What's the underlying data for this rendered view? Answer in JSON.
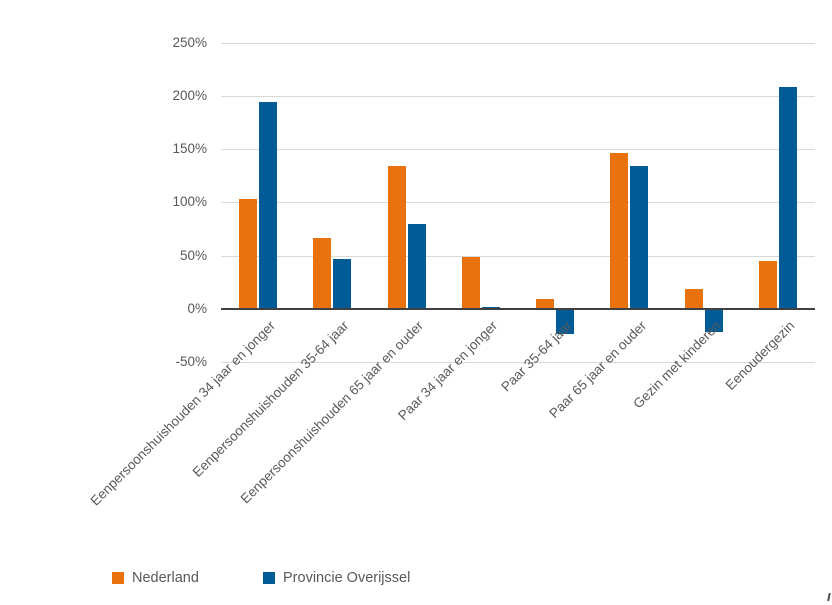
{
  "chart_data": {
    "type": "bar",
    "title": "",
    "xlabel": "",
    "ylabel": "",
    "categories": [
      "Eenpersoonshuishouden 34 jaar en jonger",
      "Eenpersoonshuishouden 35-64 jaar",
      "Eenpersoonshuishouden 65 jaar en ouder",
      "Paar 34 jaar en jonger",
      "Paar 35-64 jaar",
      "Paar 65 jaar en ouder",
      "Gezin met kinderen",
      "Eenoudergezin"
    ],
    "series": [
      {
        "name": "Nederland",
        "color": "#E8720C",
        "values": [
          103,
          67,
          134,
          49,
          9,
          146,
          19,
          45
        ]
      },
      {
        "name": "Provincie Overijssel",
        "color": "#005B96",
        "values": [
          194,
          47,
          80,
          2,
          -23,
          134,
          -22,
          208
        ]
      }
    ],
    "ylim": [
      -50,
      250
    ],
    "ytick_step": 50,
    "ytick_labels": [
      "250%",
      "200%",
      "150%",
      "100%",
      "50%",
      "0%",
      "-50%"
    ],
    "ytick_values": [
      250,
      200,
      150,
      100,
      50,
      0,
      -50
    ],
    "grid": true,
    "legend_position": "bottom-left",
    "colors": {
      "grid": "#D9D9D9",
      "axis": "#404040",
      "tick_label": "#595959",
      "background": "#FFFFFF"
    }
  },
  "legend": {
    "items": [
      {
        "label": "Nederland"
      },
      {
        "label": "Provincie Overijssel"
      }
    ]
  }
}
